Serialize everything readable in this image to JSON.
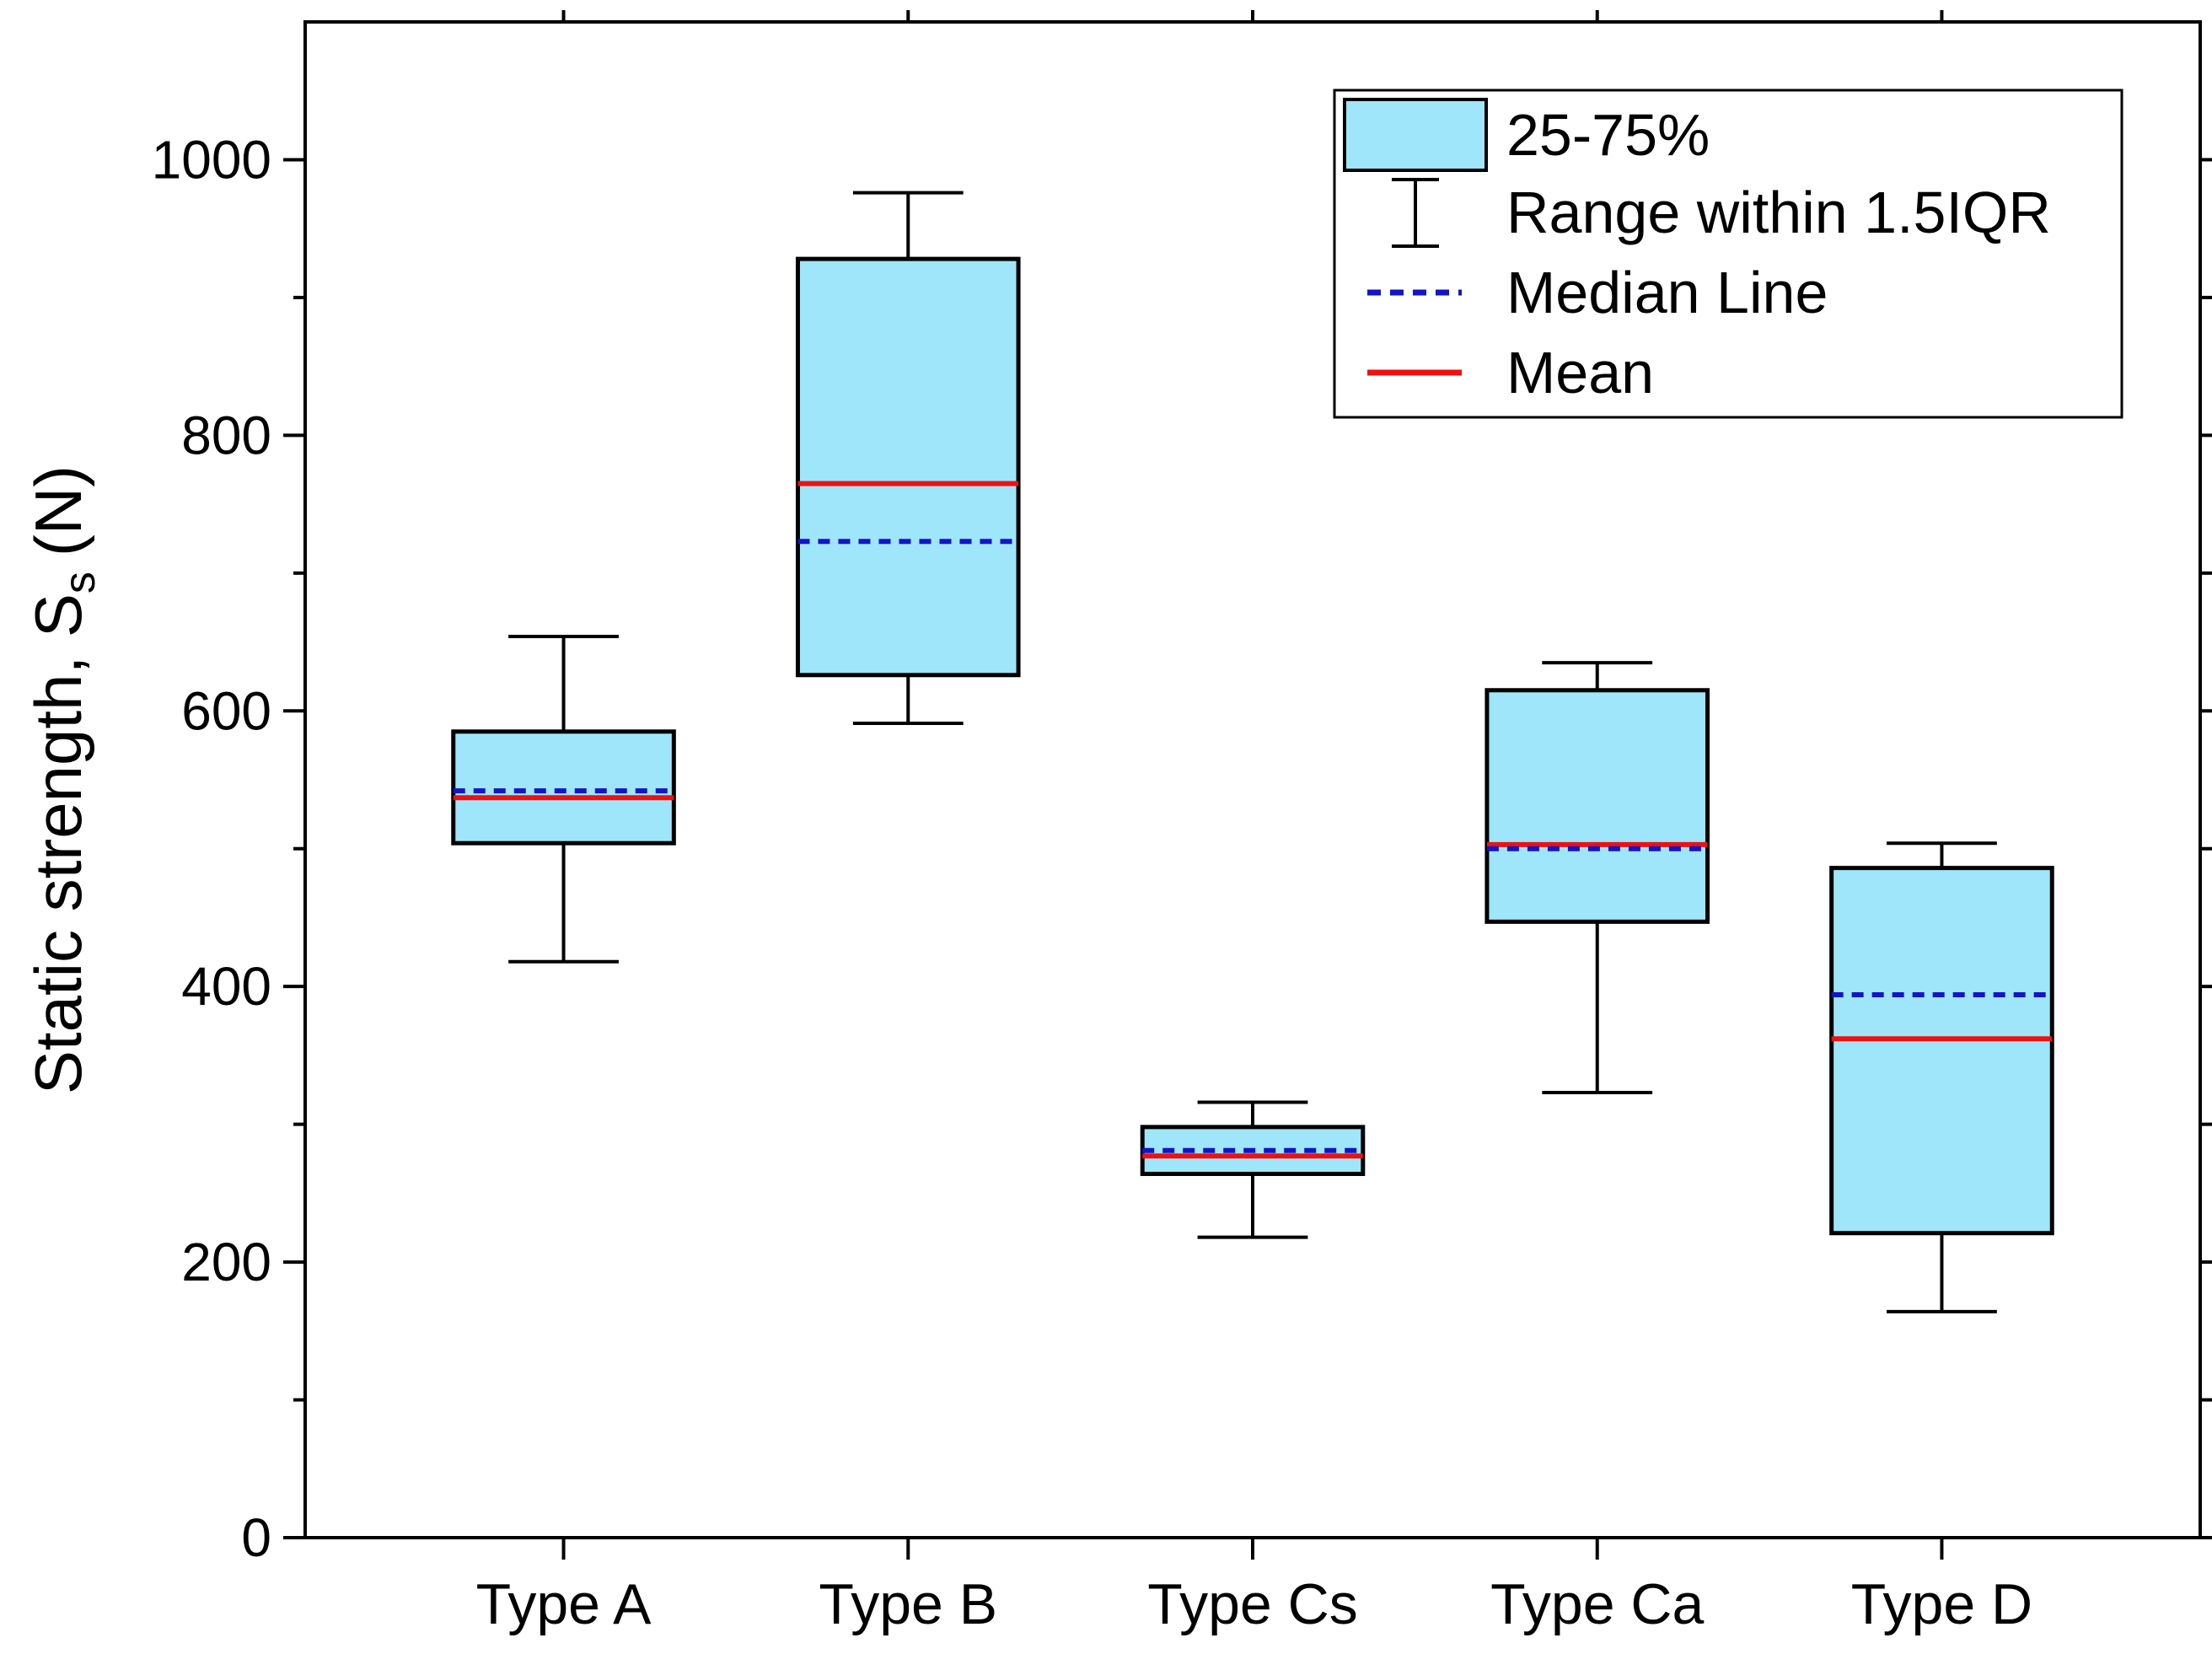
{
  "chart_data": {
    "type": "box",
    "categories": [
      "Type A",
      "Type B",
      "Type Cs",
      "Type Ca",
      "Type D"
    ],
    "boxes": [
      {
        "category": "Type A",
        "whisker_low": 418,
        "q1": 504,
        "median": 542,
        "mean": 537,
        "q3": 585,
        "whisker_high": 654
      },
      {
        "category": "Type B",
        "whisker_low": 591,
        "q1": 626,
        "median": 723,
        "mean": 765,
        "q3": 928,
        "whisker_high": 976
      },
      {
        "category": "Type Cs",
        "whisker_low": 218,
        "q1": 264,
        "median": 281,
        "mean": 277,
        "q3": 298,
        "whisker_high": 316
      },
      {
        "category": "Type Ca",
        "whisker_low": 323,
        "q1": 447,
        "median": 500,
        "mean": 503,
        "q3": 615,
        "whisker_high": 635
      },
      {
        "category": "Type D",
        "whisker_low": 164,
        "q1": 221,
        "median": 394,
        "mean": 362,
        "q3": 486,
        "whisker_high": 504
      }
    ],
    "ylabel": "Static strength, S",
    "ylabel_subscript": "s",
    "ylabel_unit": "(N)",
    "ylim": [
      0,
      1100
    ],
    "yticks": [
      0,
      200,
      400,
      600,
      800,
      1000
    ],
    "yticks_minor": [
      100,
      300,
      500,
      700,
      900
    ],
    "legend": {
      "position": "top-right",
      "box_label": "25-75%",
      "whisker_label": "Range within 1.5IQR",
      "median_label": "Median Line",
      "mean_label": "Mean"
    },
    "colors": {
      "box_fill": "#9fe6fb",
      "box_stroke": "#000000",
      "median": "#1414c8",
      "mean": "#ee1111"
    },
    "grid": false
  }
}
